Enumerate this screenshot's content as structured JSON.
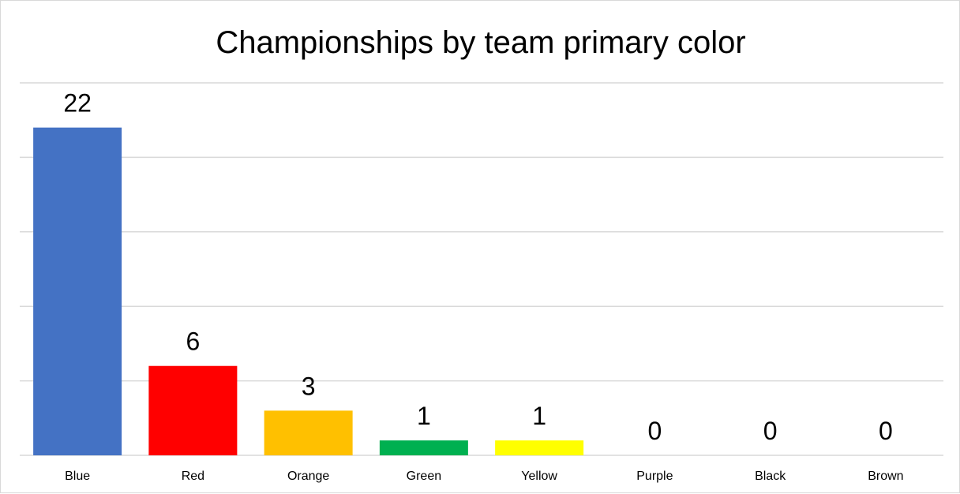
{
  "chart_data": {
    "type": "bar",
    "title": "Championships by team primary color",
    "categories": [
      "Blue",
      "Red",
      "Orange",
      "Green",
      "Yellow",
      "Purple",
      "Black",
      "Brown"
    ],
    "values": [
      22,
      6,
      3,
      1,
      1,
      0,
      0,
      0
    ],
    "colors": [
      "#4472C4",
      "#FF0000",
      "#FFC000",
      "#00B050",
      "#FFFF00",
      "#7030A0",
      "#000000",
      "#8B4513"
    ],
    "xlabel": "",
    "ylabel": "",
    "ylim": [
      0,
      25
    ],
    "y_gridlines": [
      0,
      5,
      10,
      15,
      20,
      25
    ],
    "y_tick_labels_visible": false,
    "grid": true,
    "data_labels": true,
    "legend": "none"
  }
}
